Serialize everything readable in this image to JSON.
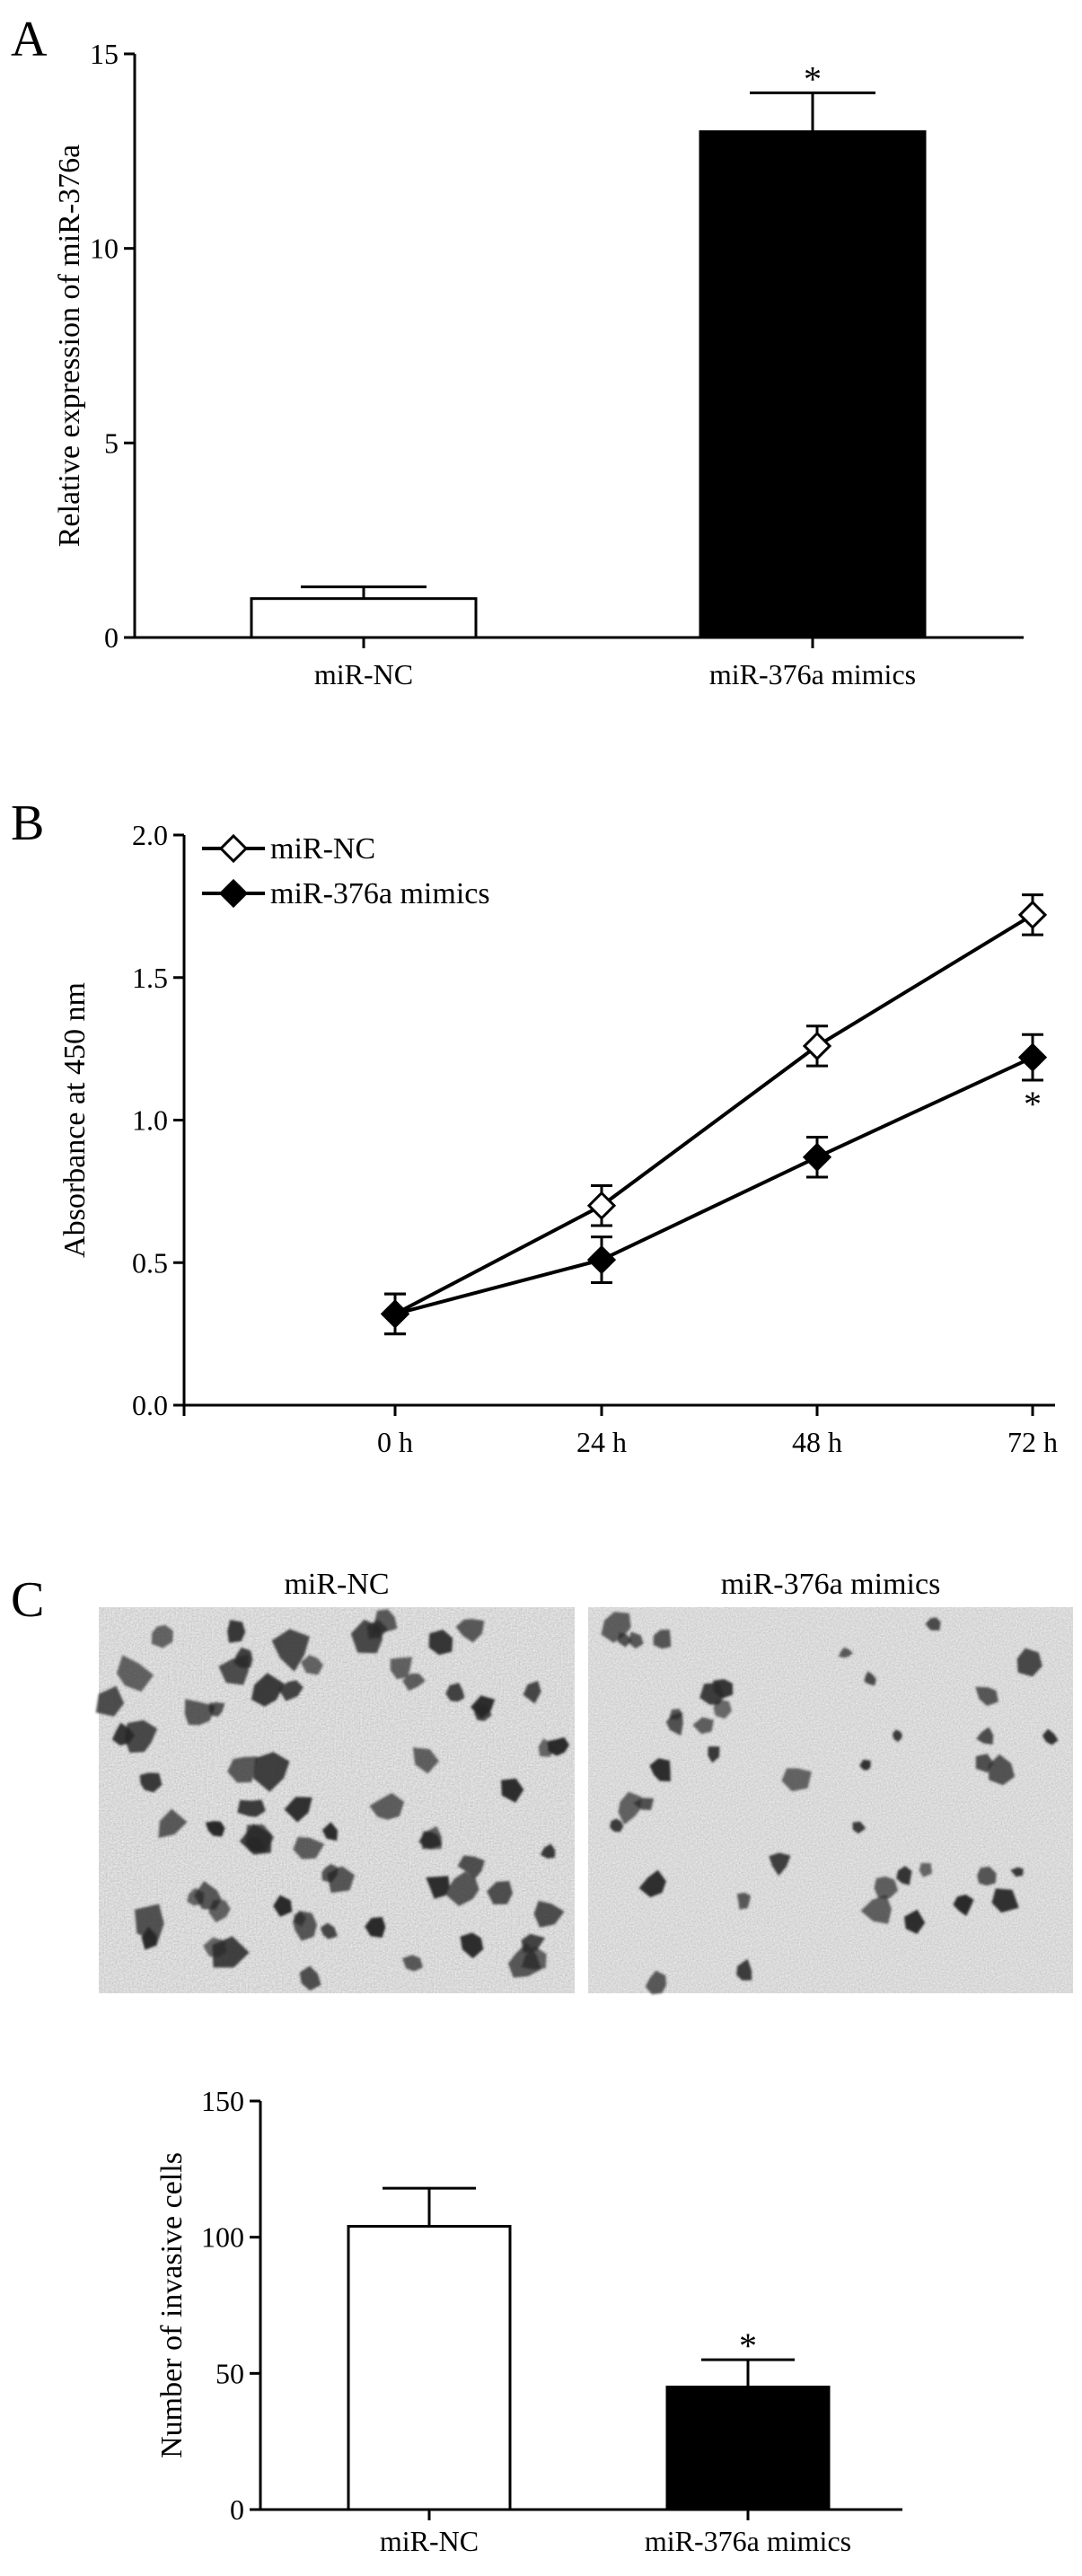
{
  "panels": [
    {
      "letter": "A"
    },
    {
      "letter": "B"
    },
    {
      "letter": "C"
    }
  ],
  "photos": {
    "left_label": "miR-NC",
    "right_label": "miR-376a mimics"
  },
  "chart_data": [
    {
      "type": "bar",
      "categories": [
        "miR-NC",
        "miR-376a mimics"
      ],
      "values": [
        1.0,
        13.0
      ],
      "errors": [
        0.3,
        1.0
      ],
      "bar_colors": [
        "#ffffff",
        "#000000"
      ],
      "significance": [
        "",
        "*"
      ],
      "title": "",
      "xlabel": "",
      "ylabel": "Relative expression of miR-376a",
      "ylim": [
        0,
        15
      ],
      "yticks": [
        0,
        5,
        10,
        15
      ],
      "grid": false
    },
    {
      "type": "line",
      "x": [
        "0 h",
        "24 h",
        "48 h",
        "72 h"
      ],
      "series": [
        {
          "name": "miR-NC",
          "values": [
            0.32,
            0.7,
            1.26,
            1.72
          ],
          "errors": [
            0.07,
            0.07,
            0.07,
            0.07
          ],
          "marker": "open-diamond"
        },
        {
          "name": "miR-376a mimics",
          "values": [
            0.32,
            0.51,
            0.87,
            1.22
          ],
          "errors": [
            0.07,
            0.08,
            0.07,
            0.08
          ],
          "marker": "filled-diamond"
        }
      ],
      "significance": [
        "",
        "",
        "",
        "*"
      ],
      "title": "",
      "xlabel": "",
      "ylabel": "Absorbance at 450 nm",
      "ylim": [
        0,
        2
      ],
      "yticks": [
        "0.0",
        "0.5",
        "1.0",
        "1.5",
        "2.0"
      ],
      "legend_position": "top-left",
      "grid": false
    },
    {
      "type": "bar",
      "categories": [
        "miR-NC",
        "miR-376a mimics"
      ],
      "values": [
        104,
        45
      ],
      "errors": [
        14,
        10
      ],
      "bar_colors": [
        "#ffffff",
        "#000000"
      ],
      "significance": [
        "",
        "*"
      ],
      "title": "",
      "xlabel": "",
      "ylabel": "Number of invasive cells",
      "ylim": [
        0,
        150
      ],
      "yticks": [
        0,
        50,
        100,
        150
      ],
      "grid": false
    }
  ]
}
